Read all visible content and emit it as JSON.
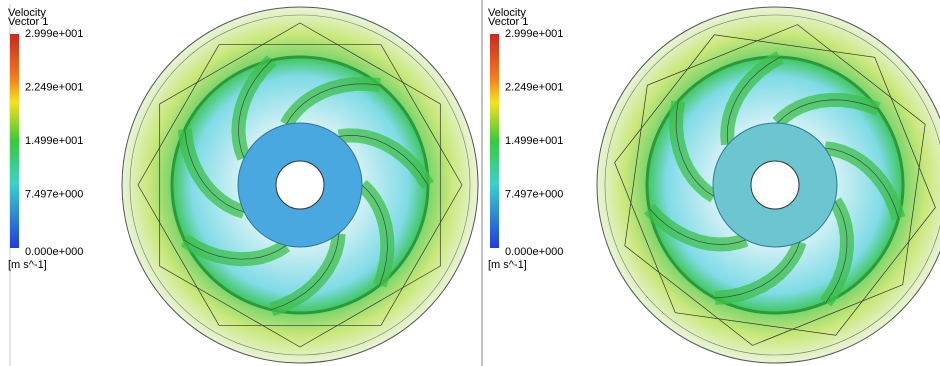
{
  "panels": [
    {
      "legend": {
        "title": [
          "Velocity",
          "Vector 1"
        ],
        "ticks": [
          "2.999e+001",
          "2.249e+001",
          "1.499e+001",
          "7.497e+000",
          "0.000e+000"
        ],
        "unit": "[m s^-1]"
      }
    },
    {
      "legend": {
        "title": [
          "Velocity",
          "Vector 1"
        ],
        "ticks": [
          "2.999e+001",
          "2.249e+001",
          "1.499e+001",
          "7.497e+000",
          "0.000e+000"
        ],
        "unit": "[m s^-1]"
      }
    }
  ]
}
